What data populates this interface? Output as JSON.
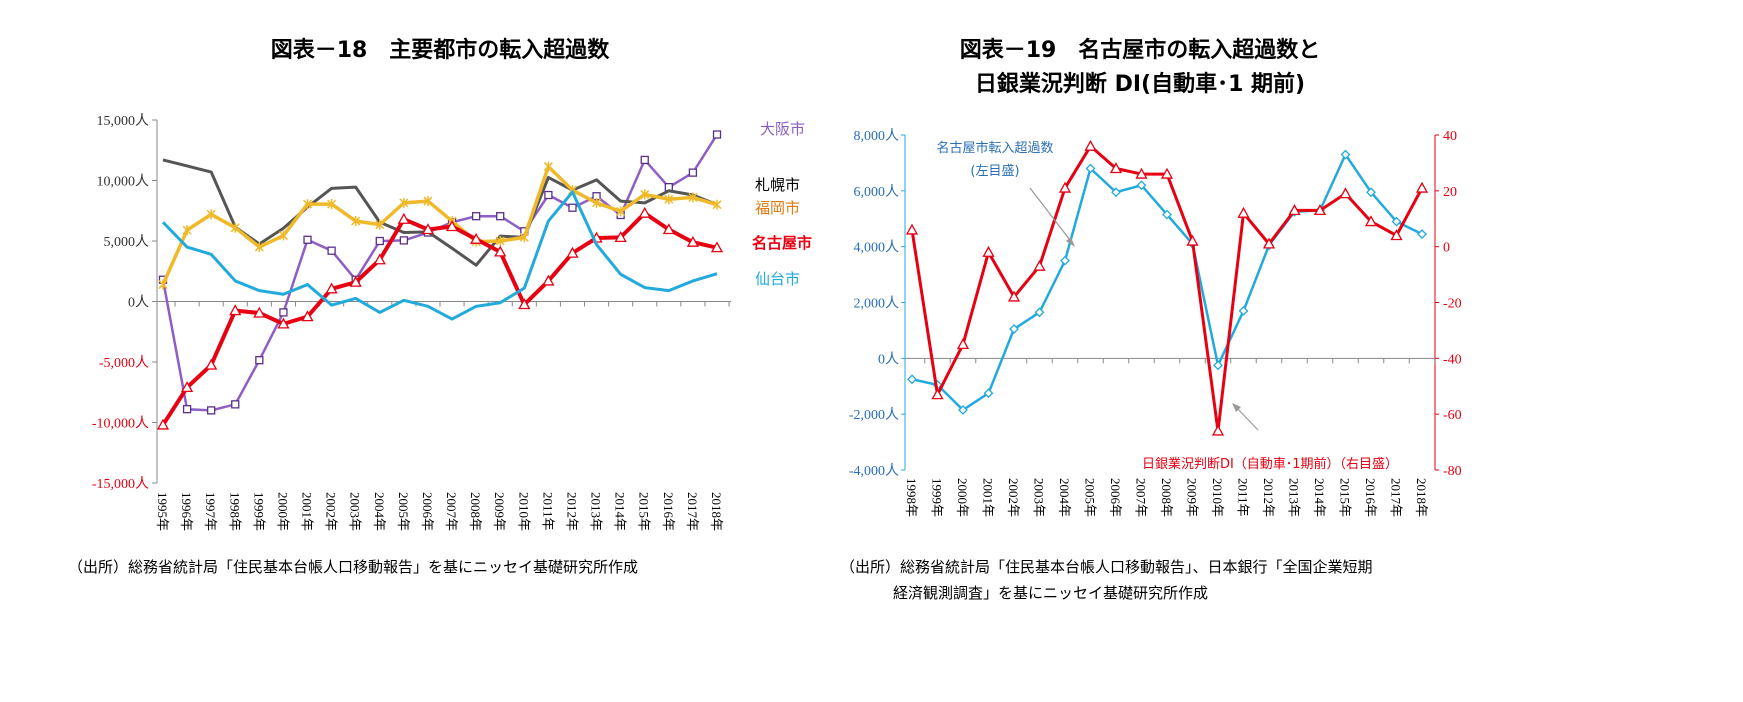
{
  "left": {
    "title": "図表－18　主要都市の転入超過数",
    "source": "（出所）総務省統計局「住民基本台帳人口移動報告」を基にニッセイ基礎研究所作成"
  },
  "right": {
    "title_line1": "図表－19　名古屋市の転入超過数と",
    "title_line2": "日銀業況判断 DI(自動車･1 期前)",
    "annotation_left_line1": "名古屋市転入超過数",
    "annotation_left_line2": "(左目盛)",
    "annotation_right": "日銀業況判断DI（自動車･1期前）（右目盛）",
    "source_line1": "（出所）総務省統計局「住民基本台帳人口移動報告」、日本銀行「全国企業短期",
    "source_line2": "経済観測調査」を基にニッセイ基礎研究所作成"
  },
  "chart_data": [
    {
      "type": "line",
      "title": "図表－18　主要都市の転入超過数",
      "categories": [
        "1995年",
        "1996年",
        "1997年",
        "1998年",
        "1999年",
        "2000年",
        "2001年",
        "2002年",
        "2003年",
        "2004年",
        "2005年",
        "2006年",
        "2007年",
        "2008年",
        "2009年",
        "2010年",
        "2011年",
        "2012年",
        "2013年",
        "2014年",
        "2015年",
        "2016年",
        "2017年",
        "2018年"
      ],
      "ylim": [
        -15000,
        15000
      ],
      "yticks": [
        15000,
        10000,
        5000,
        0,
        -5000,
        -10000,
        -15000
      ],
      "ytick_labels": [
        "15,000人",
        "10,000人",
        "5,000人",
        "0人",
        "-5,000人",
        "-10,000人",
        "-15,000人"
      ],
      "grid": false,
      "series": [
        {
          "name": "大阪市",
          "color": "#8e5ec4",
          "marker": "square",
          "values": [
            1800,
            -8900,
            -9000,
            -8500,
            -4850,
            -900,
            5100,
            4200,
            1800,
            5000,
            5050,
            5700,
            6550,
            7050,
            7050,
            5800,
            8800,
            7750,
            8700,
            7150,
            11700,
            9450,
            10650,
            13800
          ]
        },
        {
          "name": "札幌市",
          "color": "#555555",
          "marker": "none",
          "values": [
            11700,
            11200,
            10700,
            6150,
            4750,
            6050,
            7800,
            9350,
            9450,
            6550,
            5700,
            5750,
            4400,
            3000,
            5400,
            5300,
            10250,
            9200,
            10050,
            8300,
            8150,
            9150,
            8800,
            8000
          ]
        },
        {
          "name": "福岡市",
          "color": "#f0b92a",
          "marker": "star",
          "values": [
            1400,
            5900,
            7200,
            6100,
            4500,
            5450,
            8050,
            8050,
            6650,
            6350,
            8150,
            8300,
            6650,
            4950,
            5000,
            5300,
            11150,
            9200,
            8150,
            7450,
            8850,
            8450,
            8600,
            8000
          ]
        },
        {
          "name": "名古屋市",
          "color": "#e60012",
          "marker": "triangle",
          "values": [
            -10200,
            -7100,
            -5250,
            -750,
            -950,
            -1850,
            -1250,
            1050,
            1600,
            3450,
            6800,
            5950,
            6200,
            5150,
            4100,
            -250,
            1700,
            4000,
            5250,
            5300,
            7300,
            5950,
            4900,
            4450
          ]
        },
        {
          "name": "仙台市",
          "color": "#22aadd",
          "marker": "none",
          "values": [
            6550,
            4500,
            3900,
            1700,
            900,
            600,
            1400,
            -300,
            250,
            -900,
            100,
            -400,
            -1450,
            -400,
            -100,
            1100,
            6650,
            9050,
            4700,
            2250,
            1150,
            900,
            1700,
            2300
          ]
        }
      ]
    },
    {
      "type": "line",
      "title": "図表－19　名古屋市の転入超過数と日銀業況判断 DI(自動車･1 期前)",
      "categories": [
        "1998年",
        "1999年",
        "2000年",
        "2001年",
        "2002年",
        "2003年",
        "2004年",
        "2005年",
        "2006年",
        "2007年",
        "2008年",
        "2009年",
        "2010年",
        "2011年",
        "2012年",
        "2013年",
        "2014年",
        "2015年",
        "2016年",
        "2017年",
        "2018年"
      ],
      "ylim_left": [
        -4000,
        8000
      ],
      "yticks_left_labels": [
        "8,000人",
        "6,000人",
        "4,000人",
        "2,000人",
        "0人",
        "-2,000人",
        "-4,000人"
      ],
      "yticks_left": [
        8000,
        6000,
        4000,
        2000,
        0,
        -2000,
        -4000
      ],
      "ylim_right": [
        -80,
        40
      ],
      "yticks_right": [
        40,
        20,
        0,
        -20,
        -40,
        -60,
        -80
      ],
      "grid": false,
      "series": [
        {
          "name": "名古屋市転入超過数(左目盛)",
          "axis": "left",
          "color": "#22aadd",
          "marker": "diamond",
          "values": [
            -750,
            -950,
            -1850,
            -1250,
            1050,
            1650,
            3500,
            6800,
            5950,
            6200,
            5150,
            4100,
            -250,
            1700,
            4050,
            5250,
            5300,
            7300,
            5950,
            4900,
            4450
          ]
        },
        {
          "name": "日銀業況判断DI（自動車･1期前）（右目盛）",
          "axis": "right",
          "color": "#e60012",
          "marker": "triangle",
          "values": [
            6,
            -53,
            -35,
            -2,
            -18,
            -7,
            21,
            36,
            28,
            26,
            26,
            2,
            -66,
            12,
            1,
            13,
            13,
            19,
            9,
            4,
            21
          ]
        }
      ]
    }
  ]
}
